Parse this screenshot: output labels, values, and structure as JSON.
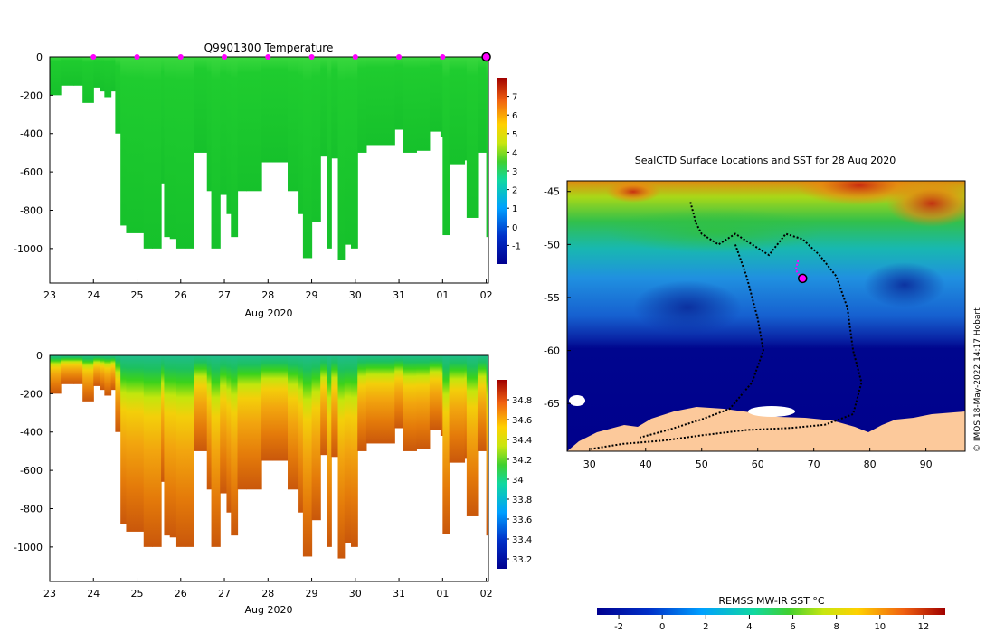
{
  "chart_data": [
    {
      "type": "heatmap",
      "title": "Q9901300  Temperature",
      "xlabel": "Aug 2020",
      "ylabel": "",
      "x_ticks": [
        "23",
        "24",
        "25",
        "26",
        "27",
        "28",
        "29",
        "30",
        "31",
        "01",
        "02"
      ],
      "x_range": [
        23,
        33.05
      ],
      "y_ticks": [
        0,
        -200,
        -400,
        -600,
        -800,
        -1000
      ],
      "ylim": [
        -1180,
        0
      ],
      "colorbar": {
        "ticks": [
          7,
          6,
          5,
          4,
          3,
          2,
          1,
          0,
          -1
        ],
        "range": [
          -2,
          8
        ]
      },
      "marker_days": [
        24,
        25,
        26,
        27,
        28,
        29,
        30,
        31,
        32
      ],
      "current_day": 33,
      "profile_depths": [
        [
          23.0,
          200
        ],
        [
          23.25,
          150
        ],
        [
          23.55,
          150
        ],
        [
          23.75,
          240
        ],
        [
          24.0,
          160
        ],
        [
          24.15,
          180
        ],
        [
          24.25,
          210
        ],
        [
          24.4,
          180
        ],
        [
          24.5,
          400
        ],
        [
          24.62,
          880
        ],
        [
          24.75,
          920
        ],
        [
          25.0,
          920
        ],
        [
          25.15,
          1000
        ],
        [
          25.35,
          1000
        ],
        [
          25.55,
          660
        ],
        [
          25.62,
          940
        ],
        [
          25.75,
          950
        ],
        [
          25.9,
          1000
        ],
        [
          26.1,
          1000
        ],
        [
          26.3,
          500
        ],
        [
          26.6,
          700
        ],
        [
          26.7,
          1000
        ],
        [
          26.9,
          720
        ],
        [
          27.05,
          820
        ],
        [
          27.15,
          940
        ],
        [
          27.3,
          700
        ],
        [
          27.5,
          700
        ],
        [
          27.85,
          550
        ],
        [
          28.1,
          550
        ],
        [
          28.45,
          700
        ],
        [
          28.7,
          820
        ],
        [
          28.8,
          1050
        ],
        [
          29.0,
          860
        ],
        [
          29.2,
          520
        ],
        [
          29.35,
          1000
        ],
        [
          29.45,
          530
        ],
        [
          29.6,
          1060
        ],
        [
          29.75,
          980
        ],
        [
          29.9,
          1000
        ],
        [
          30.05,
          500
        ],
        [
          30.25,
          460
        ],
        [
          30.65,
          460
        ],
        [
          30.9,
          380
        ],
        [
          31.1,
          500
        ],
        [
          31.4,
          490
        ],
        [
          31.7,
          390
        ],
        [
          31.95,
          420
        ],
        [
          32.0,
          930
        ],
        [
          32.15,
          560
        ],
        [
          32.5,
          540
        ],
        [
          32.55,
          840
        ],
        [
          32.8,
          500
        ],
        [
          33.0,
          940
        ]
      ]
    },
    {
      "type": "heatmap",
      "title": "",
      "xlabel": "Aug 2020",
      "ylabel": "",
      "x_ticks": [
        "23",
        "24",
        "25",
        "26",
        "27",
        "28",
        "29",
        "30",
        "31",
        "01",
        "02"
      ],
      "x_range": [
        23,
        33.05
      ],
      "y_ticks": [
        0,
        -200,
        -400,
        -600,
        -800,
        -1000
      ],
      "ylim": [
        -1180,
        0
      ],
      "colorbar": {
        "ticks": [
          34.8,
          34.6,
          34.4,
          34.2,
          34,
          33.8,
          33.6,
          33.4,
          33.2
        ],
        "range": [
          33.1,
          35
        ]
      }
    },
    {
      "type": "heatmap",
      "title": "SealCTD Surface Locations and SST for 28 Aug 2020",
      "xlabel": "",
      "ylabel": "",
      "x_ticks": [
        30,
        40,
        50,
        60,
        70,
        80,
        90
      ],
      "x_range": [
        26,
        97
      ],
      "y_ticks": [
        -45,
        -50,
        -55,
        -60,
        -65
      ],
      "y_range": [
        -69.5,
        -44
      ],
      "colorbar": {
        "label": "REMSS MW-IR SST °C",
        "ticks": [
          -2,
          0,
          2,
          4,
          6,
          8,
          10,
          12
        ],
        "range": [
          -3,
          13
        ]
      },
      "current_position": [
        68,
        -53.2
      ],
      "recent_track": [
        [
          67.2,
          -51.5
        ],
        [
          66.8,
          -52.4
        ],
        [
          67.5,
          -53.0
        ],
        [
          68,
          -53.2
        ]
      ],
      "track": [
        [
          48,
          -46
        ],
        [
          49,
          -48
        ],
        [
          50,
          -49
        ],
        [
          53,
          -50
        ],
        [
          56,
          -49
        ],
        [
          59,
          -50
        ],
        [
          62,
          -51
        ],
        [
          65,
          -49
        ],
        [
          68,
          -49.5
        ],
        [
          71,
          -51
        ],
        [
          74,
          -53
        ],
        [
          76,
          -56
        ],
        [
          77,
          -60
        ],
        [
          78.5,
          -63
        ],
        [
          77,
          -66
        ],
        [
          72,
          -67
        ],
        [
          66,
          -67.3
        ],
        [
          58,
          -67.5
        ],
        [
          50,
          -68
        ],
        [
          43,
          -68.5
        ],
        [
          36,
          -68.8
        ],
        [
          30,
          -69.3
        ]
      ],
      "track_branch": [
        [
          56,
          -50
        ],
        [
          58,
          -53
        ],
        [
          60,
          -57
        ],
        [
          61,
          -60
        ],
        [
          59,
          -63
        ],
        [
          55,
          -65.5
        ],
        [
          50,
          -66.5
        ],
        [
          44,
          -67.5
        ],
        [
          39,
          -68.2
        ]
      ]
    }
  ],
  "credit": "© IMOS 18-May-2022 14:17 Hobart"
}
